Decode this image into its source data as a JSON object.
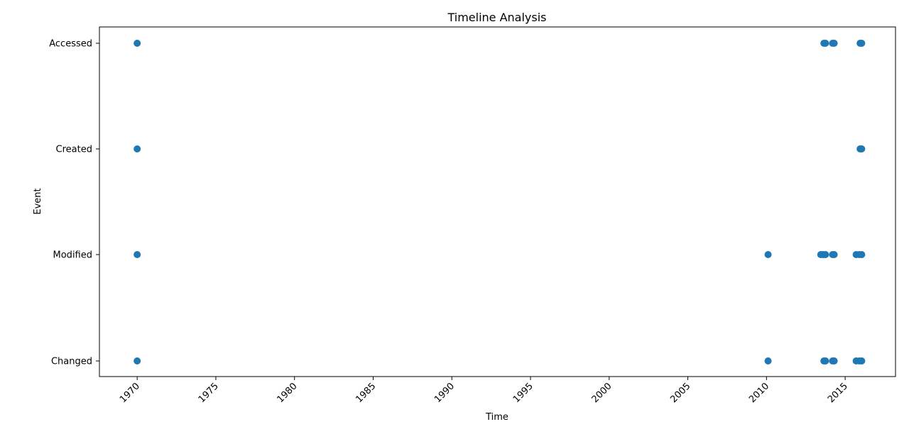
{
  "chart_data": {
    "type": "scatter",
    "title": "Timeline Analysis",
    "xlabel": "Time",
    "ylabel": "Event",
    "xlim": [
      1967.6,
      2018.2
    ],
    "xticks": [
      1970,
      1975,
      1980,
      1985,
      1990,
      1995,
      2000,
      2005,
      2010,
      2015
    ],
    "xtick_labels": [
      "1970",
      "1975",
      "1980",
      "1985",
      "1990",
      "1995",
      "2000",
      "2005",
      "2010",
      "2015"
    ],
    "xtick_rotation": 45,
    "categories": [
      "Changed",
      "Modified",
      "Created",
      "Accessed"
    ],
    "grid": false,
    "legend": "none",
    "marker_color": "#1f77b4",
    "series": [
      {
        "points": [
          {
            "x": 1970.0,
            "y": "Accessed"
          },
          {
            "x": 2013.65,
            "y": "Accessed"
          },
          {
            "x": 2013.75,
            "y": "Accessed"
          },
          {
            "x": 2014.2,
            "y": "Accessed"
          },
          {
            "x": 2014.3,
            "y": "Accessed"
          },
          {
            "x": 2015.95,
            "y": "Accessed"
          },
          {
            "x": 2016.05,
            "y": "Accessed"
          },
          {
            "x": 1970.0,
            "y": "Created"
          },
          {
            "x": 2015.95,
            "y": "Created"
          },
          {
            "x": 2016.05,
            "y": "Created"
          },
          {
            "x": 1970.0,
            "y": "Modified"
          },
          {
            "x": 2010.1,
            "y": "Modified"
          },
          {
            "x": 2013.45,
            "y": "Modified"
          },
          {
            "x": 2013.6,
            "y": "Modified"
          },
          {
            "x": 2013.75,
            "y": "Modified"
          },
          {
            "x": 2014.2,
            "y": "Modified"
          },
          {
            "x": 2014.3,
            "y": "Modified"
          },
          {
            "x": 2015.7,
            "y": "Modified"
          },
          {
            "x": 2015.9,
            "y": "Modified"
          },
          {
            "x": 2016.05,
            "y": "Modified"
          },
          {
            "x": 1970.0,
            "y": "Changed"
          },
          {
            "x": 2010.1,
            "y": "Changed"
          },
          {
            "x": 2013.65,
            "y": "Changed"
          },
          {
            "x": 2013.75,
            "y": "Changed"
          },
          {
            "x": 2014.2,
            "y": "Changed"
          },
          {
            "x": 2014.3,
            "y": "Changed"
          },
          {
            "x": 2015.7,
            "y": "Changed"
          },
          {
            "x": 2015.9,
            "y": "Changed"
          },
          {
            "x": 2016.05,
            "y": "Changed"
          }
        ]
      }
    ]
  }
}
